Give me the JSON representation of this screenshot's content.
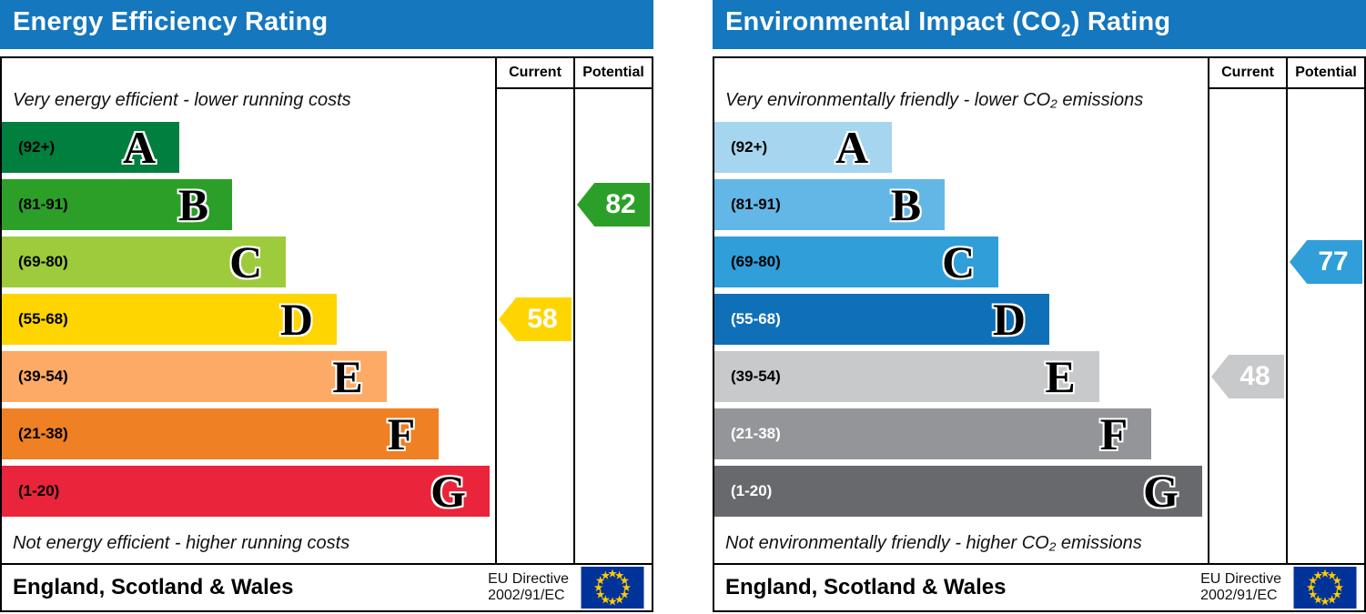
{
  "colors": {
    "header_bg": "#1577bd",
    "header_text": "#ffffff",
    "border": "#000000",
    "eu_flag_blue": "#003399",
    "eu_flag_stars": "#ffcc00"
  },
  "panels": [
    {
      "id": "energy-efficiency",
      "title_prefix": "Energy Efficiency Rating",
      "title_sub": "",
      "title_suffix": "",
      "columns": {
        "current": "Current",
        "potential": "Potential"
      },
      "top_caption": "Very energy efficient - lower running costs",
      "bottom_caption": "Not energy efficient - higher running costs",
      "bands": [
        {
          "letter": "A",
          "range": "(92+)",
          "color": "#007f3e",
          "range_color": "#000000",
          "width_pct": 36.0
        },
        {
          "letter": "B",
          "range": "(81-91)",
          "color": "#2c9f29",
          "range_color": "#000000",
          "width_pct": 46.7
        },
        {
          "letter": "C",
          "range": "(69-80)",
          "color": "#9dcb3c",
          "range_color": "#000000",
          "width_pct": 57.6
        },
        {
          "letter": "D",
          "range": "(55-68)",
          "color": "#ffd500",
          "range_color": "#000000",
          "width_pct": 67.9
        },
        {
          "letter": "E",
          "range": "(39-54)",
          "color": "#fcaa65",
          "range_color": "#000000",
          "width_pct": 78.0
        },
        {
          "letter": "F",
          "range": "(21-38)",
          "color": "#ef8023",
          "range_color": "#000000",
          "width_pct": 88.6
        },
        {
          "letter": "G",
          "range": "(1-20)",
          "color": "#e9243b",
          "range_color": "#000000",
          "width_pct": 98.9
        }
      ],
      "current": {
        "value": "58",
        "band_index": 3,
        "color": "#ffd500"
      },
      "potential": {
        "value": "82",
        "band_index": 1,
        "color": "#2c9f29"
      },
      "footer": {
        "region": "England, Scotland & Wales",
        "directive_line1": "EU Directive",
        "directive_line2": "2002/91/EC"
      }
    },
    {
      "id": "environmental-impact",
      "title_prefix": "Environmental Impact (CO",
      "title_sub": "2",
      "title_suffix": ") Rating",
      "columns": {
        "current": "Current",
        "potential": "Potential"
      },
      "top_caption": "Very environmentally friendly - lower CO₂ emissions",
      "bottom_caption": "Not environmentally friendly - higher CO₂ emissions",
      "bands": [
        {
          "letter": "A",
          "range": "(92+)",
          "color": "#a6d5ef",
          "range_color": "#000000",
          "width_pct": 36.0
        },
        {
          "letter": "B",
          "range": "(81-91)",
          "color": "#63b7e6",
          "range_color": "#000000",
          "width_pct": 46.7
        },
        {
          "letter": "C",
          "range": "(69-80)",
          "color": "#2f9ed9",
          "range_color": "#000000",
          "width_pct": 57.6
        },
        {
          "letter": "D",
          "range": "(55-68)",
          "color": "#0f70b8",
          "range_color": "#ffffff",
          "width_pct": 67.9
        },
        {
          "letter": "E",
          "range": "(39-54)",
          "color": "#c8c9cb",
          "range_color": "#000000",
          "width_pct": 78.0
        },
        {
          "letter": "F",
          "range": "(21-38)",
          "color": "#949599",
          "range_color": "#ffffff",
          "width_pct": 88.6
        },
        {
          "letter": "G",
          "range": "(1-20)",
          "color": "#68696d",
          "range_color": "#ffffff",
          "width_pct": 98.9
        }
      ],
      "current": {
        "value": "48",
        "band_index": 4,
        "color": "#c8c9cb"
      },
      "potential": {
        "value": "77",
        "band_index": 2,
        "color": "#2f9ed9"
      },
      "footer": {
        "region": "England, Scotland & Wales",
        "directive_line1": "EU Directive",
        "directive_line2": "2002/91/EC"
      }
    }
  ],
  "chart_data": [
    {
      "type": "bar",
      "title": "Energy Efficiency Rating",
      "categories": [
        "A (92+)",
        "B (81-91)",
        "C (69-80)",
        "D (55-68)",
        "E (39-54)",
        "F (21-38)",
        "G (1-20)"
      ],
      "values": [
        36.0,
        46.7,
        57.6,
        67.9,
        78.0,
        88.6,
        98.9
      ],
      "values_note": "band bar lengths as percent of scale width",
      "current": 58,
      "current_band": "D",
      "potential": 82,
      "potential_band": "B",
      "top_note": "Very energy efficient - lower running costs",
      "bottom_note": "Not energy efficient - higher running costs",
      "columns": [
        "Current",
        "Potential"
      ],
      "region": "England, Scotland & Wales",
      "directive": "EU Directive 2002/91/EC"
    },
    {
      "type": "bar",
      "title": "Environmental Impact (CO₂) Rating",
      "categories": [
        "A (92+)",
        "B (81-91)",
        "C (69-80)",
        "D (55-68)",
        "E (39-54)",
        "F (21-38)",
        "G (1-20)"
      ],
      "values": [
        36.0,
        46.7,
        57.6,
        67.9,
        78.0,
        88.6,
        98.9
      ],
      "values_note": "band bar lengths as percent of scale width",
      "current": 48,
      "current_band": "E",
      "potential": 77,
      "potential_band": "C",
      "top_note": "Very environmentally friendly - lower CO₂ emissions",
      "bottom_note": "Not environmentally friendly - higher CO₂ emissions",
      "columns": [
        "Current",
        "Potential"
      ],
      "region": "England, Scotland & Wales",
      "directive": "EU Directive 2002/91/EC"
    }
  ]
}
